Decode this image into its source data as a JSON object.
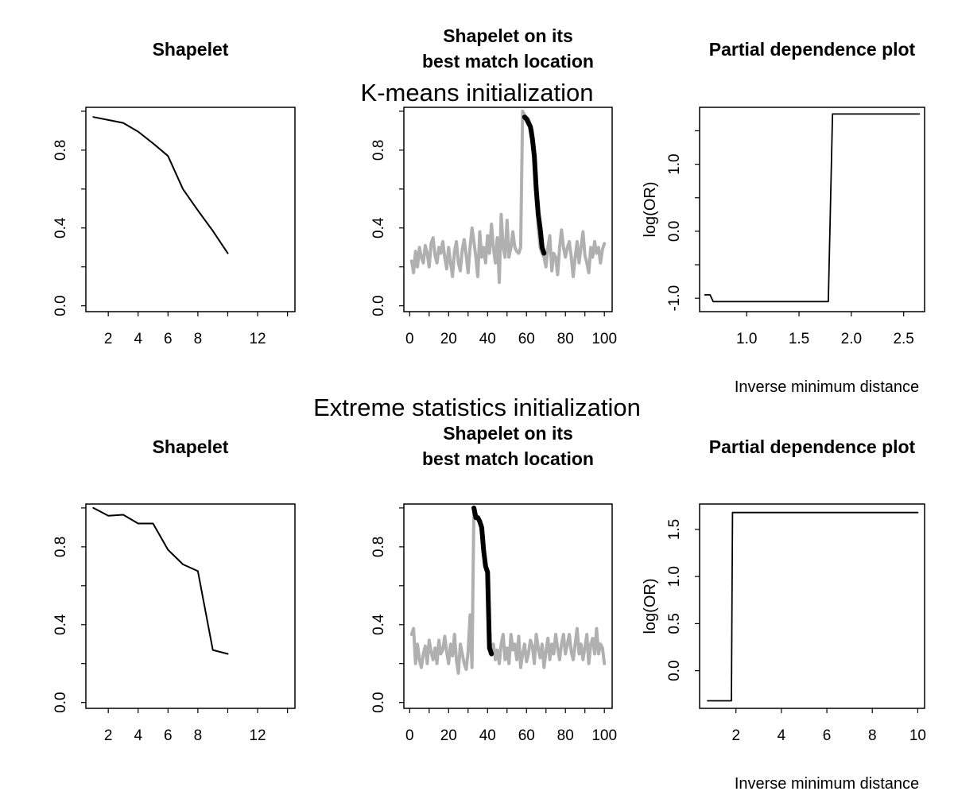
{
  "figure": {
    "sections": [
      {
        "title": "K-means initialization"
      },
      {
        "title": "Extreme statistics initialization"
      }
    ]
  },
  "chart_data": [
    {
      "id": "kmeans-shapelet",
      "type": "line",
      "title": "Shapelet",
      "xlabel": "",
      "ylabel": "",
      "xlim": [
        0.5,
        14.5
      ],
      "ylim": [
        -0.03,
        1.02
      ],
      "xticks": [
        2,
        4,
        6,
        8,
        12
      ],
      "xtick_labels": [
        "2",
        "4",
        "6",
        "8",
        "12"
      ],
      "xminor": [
        10,
        14
      ],
      "yticks": [
        0.0,
        0.4,
        0.8
      ],
      "ytick_labels": [
        "0.0",
        "0.4",
        "0.8"
      ],
      "yminor": [
        0.2,
        0.6,
        1.0
      ],
      "series": [
        {
          "color": "#000000",
          "width": 2,
          "x": [
            1,
            2,
            3,
            4,
            5,
            6,
            7,
            8,
            9,
            10
          ],
          "y": [
            0.97,
            0.955,
            0.94,
            0.895,
            0.835,
            0.77,
            0.6,
            0.49,
            0.385,
            0.27
          ]
        }
      ]
    },
    {
      "id": "kmeans-match",
      "type": "line",
      "title": "Shapelet on its\nbest match location",
      "xlabel": "",
      "ylabel": "",
      "xlim": [
        -3,
        104
      ],
      "ylim": [
        -0.03,
        1.02
      ],
      "xticks": [
        0,
        20,
        40,
        60,
        80,
        100
      ],
      "xtick_labels": [
        "0",
        "20",
        "40",
        "60",
        "80",
        "100"
      ],
      "xminor": [
        10,
        30,
        50,
        70,
        90
      ],
      "yticks": [
        0.0,
        0.4,
        0.8
      ],
      "ytick_labels": [
        "0.0",
        "0.4",
        "0.8"
      ],
      "yminor": [
        0.2,
        0.6,
        1.0
      ],
      "series": [
        {
          "color": "#b0b0b0",
          "width": 4,
          "x": [
            1,
            2,
            3,
            4,
            5,
            6,
            7,
            8,
            9,
            10,
            11,
            12,
            13,
            14,
            15,
            16,
            17,
            18,
            19,
            20,
            21,
            22,
            23,
            24,
            25,
            26,
            27,
            28,
            29,
            30,
            31,
            32,
            33,
            34,
            35,
            36,
            37,
            38,
            39,
            40,
            41,
            42,
            43,
            44,
            45,
            46,
            47,
            48,
            49,
            50,
            51,
            52,
            53,
            54,
            55,
            56,
            57,
            58,
            59,
            60,
            61,
            62,
            63,
            64,
            65,
            66,
            67,
            68,
            69,
            70,
            71,
            72,
            73,
            74,
            75,
            76,
            77,
            78,
            79,
            80,
            81,
            82,
            83,
            84,
            85,
            86,
            87,
            88,
            89,
            90,
            91,
            92,
            93,
            94,
            95,
            96,
            97,
            98,
            99,
            100
          ],
          "y": [
            0.23,
            0.17,
            0.28,
            0.2,
            0.3,
            0.25,
            0.22,
            0.31,
            0.27,
            0.2,
            0.32,
            0.35,
            0.26,
            0.22,
            0.3,
            0.27,
            0.33,
            0.25,
            0.19,
            0.3,
            0.22,
            0.15,
            0.28,
            0.33,
            0.22,
            0.18,
            0.29,
            0.34,
            0.26,
            0.17,
            0.3,
            0.4,
            0.33,
            0.25,
            0.15,
            0.38,
            0.25,
            0.3,
            0.22,
            0.36,
            0.27,
            0.42,
            0.3,
            0.22,
            0.35,
            0.12,
            0.47,
            0.3,
            0.25,
            0.44,
            0.25,
            0.3,
            0.38,
            0.3,
            0.28,
            0.27,
            0.3,
            1.0,
            0.98,
            0.97,
            0.96,
            0.93,
            0.9,
            0.8,
            0.65,
            0.4,
            0.3,
            0.27,
            0.25,
            0.2,
            0.3,
            0.36,
            0.18,
            0.27,
            0.25,
            0.16,
            0.3,
            0.39,
            0.3,
            0.25,
            0.3,
            0.33,
            0.25,
            0.15,
            0.25,
            0.33,
            0.22,
            0.3,
            0.38,
            0.26,
            0.22,
            0.17,
            0.3,
            0.25,
            0.33,
            0.27,
            0.3,
            0.22,
            0.29,
            0.32
          ]
        },
        {
          "color": "#000000",
          "width": 6,
          "x": [
            59,
            60,
            61,
            62,
            63,
            64,
            65,
            66,
            67,
            68,
            69
          ],
          "y": [
            0.97,
            0.96,
            0.94,
            0.92,
            0.86,
            0.77,
            0.6,
            0.47,
            0.4,
            0.3,
            0.27
          ]
        }
      ]
    },
    {
      "id": "kmeans-pdp",
      "type": "line",
      "title": "Partial dependence plot",
      "xlabel": "Inverse minimum distance",
      "ylabel": "log(OR)",
      "xlim": [
        0.55,
        2.7
      ],
      "ylim": [
        -1.2,
        1.85
      ],
      "xticks": [
        1.0,
        1.5,
        2.0,
        2.5
      ],
      "xtick_labels": [
        "1.0",
        "1.5",
        "2.0",
        "2.5"
      ],
      "xminor": [],
      "yticks": [
        -1.0,
        0.0,
        1.0
      ],
      "ytick_labels": [
        "-1.0",
        "0.0",
        "1.0"
      ],
      "yminor": [
        -0.5,
        0.5,
        1.5
      ],
      "series": [
        {
          "color": "#000000",
          "width": 1.8,
          "x": [
            0.6,
            0.65,
            0.68,
            1.78,
            1.82,
            2.65
          ],
          "y": [
            -0.95,
            -0.95,
            -1.05,
            -1.05,
            1.75,
            1.75
          ]
        }
      ]
    },
    {
      "id": "extreme-shapelet",
      "type": "line",
      "title": "Shapelet",
      "xlabel": "",
      "ylabel": "",
      "xlim": [
        0.5,
        14.5
      ],
      "ylim": [
        -0.03,
        1.02
      ],
      "xticks": [
        2,
        4,
        6,
        8,
        12
      ],
      "xtick_labels": [
        "2",
        "4",
        "6",
        "8",
        "12"
      ],
      "xminor": [
        10,
        14
      ],
      "yticks": [
        0.0,
        0.4,
        0.8
      ],
      "ytick_labels": [
        "0.0",
        "0.4",
        "0.8"
      ],
      "yminor": [
        0.2,
        0.6,
        1.0
      ],
      "series": [
        {
          "color": "#000000",
          "width": 2,
          "x": [
            1,
            2,
            3,
            4,
            5,
            6,
            7,
            8,
            9,
            10
          ],
          "y": [
            1.0,
            0.96,
            0.965,
            0.92,
            0.92,
            0.785,
            0.71,
            0.675,
            0.27,
            0.25
          ]
        }
      ]
    },
    {
      "id": "extreme-match",
      "type": "line",
      "title": "Shapelet on its\nbest match location",
      "xlabel": "",
      "ylabel": "",
      "xlim": [
        -3,
        104
      ],
      "ylim": [
        -0.03,
        1.02
      ],
      "xticks": [
        0,
        20,
        40,
        60,
        80,
        100
      ],
      "xtick_labels": [
        "0",
        "20",
        "40",
        "60",
        "80",
        "100"
      ],
      "xminor": [
        10,
        30,
        50,
        70,
        90
      ],
      "yticks": [
        0.0,
        0.4,
        0.8
      ],
      "ytick_labels": [
        "0.0",
        "0.4",
        "0.8"
      ],
      "yminor": [
        0.2,
        0.6,
        1.0
      ],
      "series": [
        {
          "color": "#b0b0b0",
          "width": 4,
          "x": [
            1,
            2,
            3,
            4,
            5,
            6,
            7,
            8,
            9,
            10,
            11,
            12,
            13,
            14,
            15,
            16,
            17,
            18,
            19,
            20,
            21,
            22,
            23,
            24,
            25,
            26,
            27,
            28,
            29,
            30,
            31,
            32,
            33,
            34,
            35,
            36,
            37,
            38,
            39,
            40,
            41,
            42,
            43,
            44,
            45,
            46,
            47,
            48,
            49,
            50,
            51,
            52,
            53,
            54,
            55,
            56,
            57,
            58,
            59,
            60,
            61,
            62,
            63,
            64,
            65,
            66,
            67,
            68,
            69,
            70,
            71,
            72,
            73,
            74,
            75,
            76,
            77,
            78,
            79,
            80,
            81,
            82,
            83,
            84,
            85,
            86,
            87,
            88,
            89,
            90,
            91,
            92,
            93,
            94,
            95,
            96,
            97,
            98,
            99,
            100
          ],
          "y": [
            0.35,
            0.38,
            0.2,
            0.3,
            0.22,
            0.18,
            0.25,
            0.29,
            0.2,
            0.32,
            0.26,
            0.22,
            0.28,
            0.2,
            0.32,
            0.25,
            0.27,
            0.34,
            0.26,
            0.2,
            0.3,
            0.24,
            0.35,
            0.22,
            0.15,
            0.3,
            0.25,
            0.2,
            0.17,
            0.26,
            0.45,
            0.18,
            1.0,
            0.95,
            0.95,
            0.93,
            0.9,
            0.78,
            0.7,
            0.67,
            0.28,
            0.25,
            0.3,
            0.22,
            0.27,
            0.2,
            0.3,
            0.35,
            0.22,
            0.28,
            0.2,
            0.35,
            0.27,
            0.3,
            0.22,
            0.34,
            0.18,
            0.25,
            0.3,
            0.21,
            0.25,
            0.32,
            0.29,
            0.2,
            0.35,
            0.28,
            0.23,
            0.3,
            0.18,
            0.26,
            0.33,
            0.22,
            0.3,
            0.25,
            0.35,
            0.28,
            0.22,
            0.3,
            0.35,
            0.25,
            0.3,
            0.35,
            0.26,
            0.22,
            0.3,
            0.38,
            0.25,
            0.3,
            0.22,
            0.28,
            0.35,
            0.2,
            0.3,
            0.33,
            0.25,
            0.38,
            0.25,
            0.3,
            0.28,
            0.2
          ]
        },
        {
          "color": "#000000",
          "width": 6,
          "x": [
            33,
            34,
            35,
            36,
            37,
            38,
            39,
            40,
            41,
            42
          ],
          "y": [
            1.0,
            0.95,
            0.95,
            0.93,
            0.9,
            0.78,
            0.7,
            0.67,
            0.28,
            0.25
          ]
        }
      ]
    },
    {
      "id": "extreme-pdp",
      "type": "line",
      "title": "Partial dependence plot",
      "xlabel": "Inverse minimum distance",
      "ylabel": "log(OR)",
      "xlim": [
        0.4,
        10.3
      ],
      "ylim": [
        -0.4,
        1.77
      ],
      "xticks": [
        2,
        4,
        6,
        8,
        10
      ],
      "xtick_labels": [
        "2",
        "4",
        "6",
        "8",
        "10"
      ],
      "xminor": [],
      "yticks": [
        0.0,
        0.5,
        1.0,
        1.5
      ],
      "ytick_labels": [
        "0.0",
        "0.5",
        "1.0",
        "1.5"
      ],
      "yminor": [],
      "series": [
        {
          "color": "#000000",
          "width": 1.8,
          "x": [
            0.75,
            1.8,
            1.85,
            10.0
          ],
          "y": [
            -0.32,
            -0.32,
            1.68,
            1.68
          ]
        }
      ]
    }
  ]
}
